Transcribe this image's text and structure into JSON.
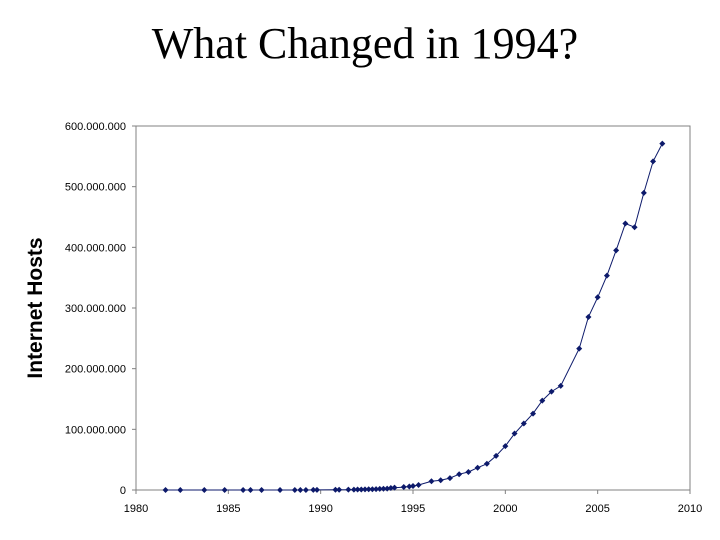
{
  "slide": {
    "title": "What Changed in 1994?"
  },
  "colors": {
    "series": "#0d1a6b",
    "axis": "#808080",
    "text": "#000000"
  },
  "chart_data": {
    "type": "scatter",
    "title": "What Changed in 1994?",
    "xlabel": "",
    "ylabel": "Internet Hosts",
    "xlim": [
      1980,
      2010
    ],
    "ylim": [
      0,
      600000000
    ],
    "grid": false,
    "legend": "none",
    "x_ticks": [
      1980,
      1985,
      1990,
      1995,
      2000,
      2005,
      2010
    ],
    "x_tick_labels": [
      "1980",
      "1985",
      "1990",
      "1995",
      "2000",
      "2005",
      "2010"
    ],
    "y_ticks": [
      0,
      100000000,
      200000000,
      300000000,
      400000000,
      500000000,
      600000000
    ],
    "y_tick_labels": [
      "0",
      "100.000.000",
      "200.000.000",
      "300.000.000",
      "400.000.000",
      "500.000.000",
      "600.000.000"
    ],
    "series": [
      {
        "name": "Internet Hosts",
        "marker": "diamond",
        "line": true,
        "x": [
          1981.6,
          1982.4,
          1983.7,
          1984.8,
          1985.8,
          1986.2,
          1986.8,
          1987.8,
          1988.6,
          1988.9,
          1989.2,
          1989.6,
          1989.8,
          1990.8,
          1991.0,
          1991.5,
          1991.8,
          1992.0,
          1992.2,
          1992.4,
          1992.6,
          1992.8,
          1993.0,
          1993.2,
          1993.4,
          1993.6,
          1993.8,
          1994.0,
          1994.5,
          1994.8,
          1995.0,
          1995.3,
          1996.0,
          1996.5,
          1997.0,
          1997.5,
          1998.0,
          1998.5,
          1999.0,
          1999.5,
          2000.0,
          2000.5,
          2001.0,
          2001.5,
          2002.0,
          2002.5,
          2003.0,
          2004.0,
          2004.5,
          2005.0,
          2005.5,
          2006.0,
          2006.5,
          2007.0,
          2007.5,
          2008.0,
          2008.5
        ],
        "y": [
          213,
          235,
          562,
          1024,
          1961,
          2308,
          5089,
          28174,
          33000,
          56000,
          80000,
          130000,
          159000,
          313000,
          376000,
          535000,
          617000,
          727000,
          890000,
          992000,
          1136000,
          1313000,
          1486000,
          1776000,
          2056000,
          2217000,
          3212000,
          3864000,
          4852000,
          5846000,
          6642000,
          8200000,
          14352000,
          16146000,
          19540000,
          26053000,
          29670000,
          36739000,
          43230000,
          56218000,
          72398000,
          93047000,
          109574000,
          125888000,
          147345000,
          162128000,
          171638000,
          233101000,
          285139000,
          317646000,
          353284000,
          394991000,
          439286000,
          433193000,
          489774000,
          541677000,
          570937000
        ]
      }
    ]
  }
}
